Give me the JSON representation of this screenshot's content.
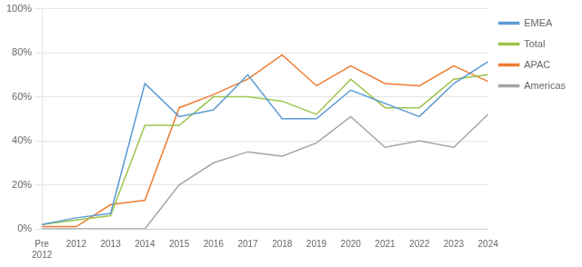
{
  "chart_data": {
    "type": "line",
    "categories": [
      "Pre\n2012",
      "2012",
      "2013",
      "2014",
      "2015",
      "2016",
      "2017",
      "2018",
      "2019",
      "2020",
      "2021",
      "2022",
      "2023",
      "2024"
    ],
    "series": [
      {
        "name": "EMEA",
        "color": "#5b9bd5",
        "values": [
          0.02,
          0.05,
          0.07,
          0.66,
          0.51,
          0.54,
          0.7,
          0.5,
          0.5,
          0.63,
          0.57,
          0.51,
          0.66,
          0.76
        ]
      },
      {
        "name": "Total",
        "color": "#9dc44d",
        "values": [
          0.02,
          0.04,
          0.06,
          0.47,
          0.47,
          0.6,
          0.6,
          0.58,
          0.52,
          0.68,
          0.55,
          0.55,
          0.68,
          0.7
        ]
      },
      {
        "name": "APAC",
        "color": "#ed7d31",
        "values": [
          0.01,
          0.01,
          0.11,
          0.13,
          0.55,
          0.61,
          0.68,
          0.79,
          0.65,
          0.74,
          0.66,
          0.65,
          0.74,
          0.67
        ]
      },
      {
        "name": "Americas",
        "color": "#a5a5a5",
        "values": [
          0.0,
          0.0,
          0.0,
          0.0,
          0.2,
          0.3,
          0.35,
          0.33,
          0.39,
          0.51,
          0.37,
          0.4,
          0.37,
          0.52
        ]
      }
    ],
    "ylim": [
      0,
      1.0
    ],
    "yticks": [
      {
        "value": 0,
        "label": "0%"
      },
      {
        "value": 0.2,
        "label": "20%"
      },
      {
        "value": 0.4,
        "label": "40%"
      },
      {
        "value": 0.6,
        "label": "60%"
      },
      {
        "value": 0.8,
        "label": "80%"
      },
      {
        "value": 1.0,
        "label": "100%"
      }
    ],
    "grid": "y",
    "legend": "right"
  }
}
